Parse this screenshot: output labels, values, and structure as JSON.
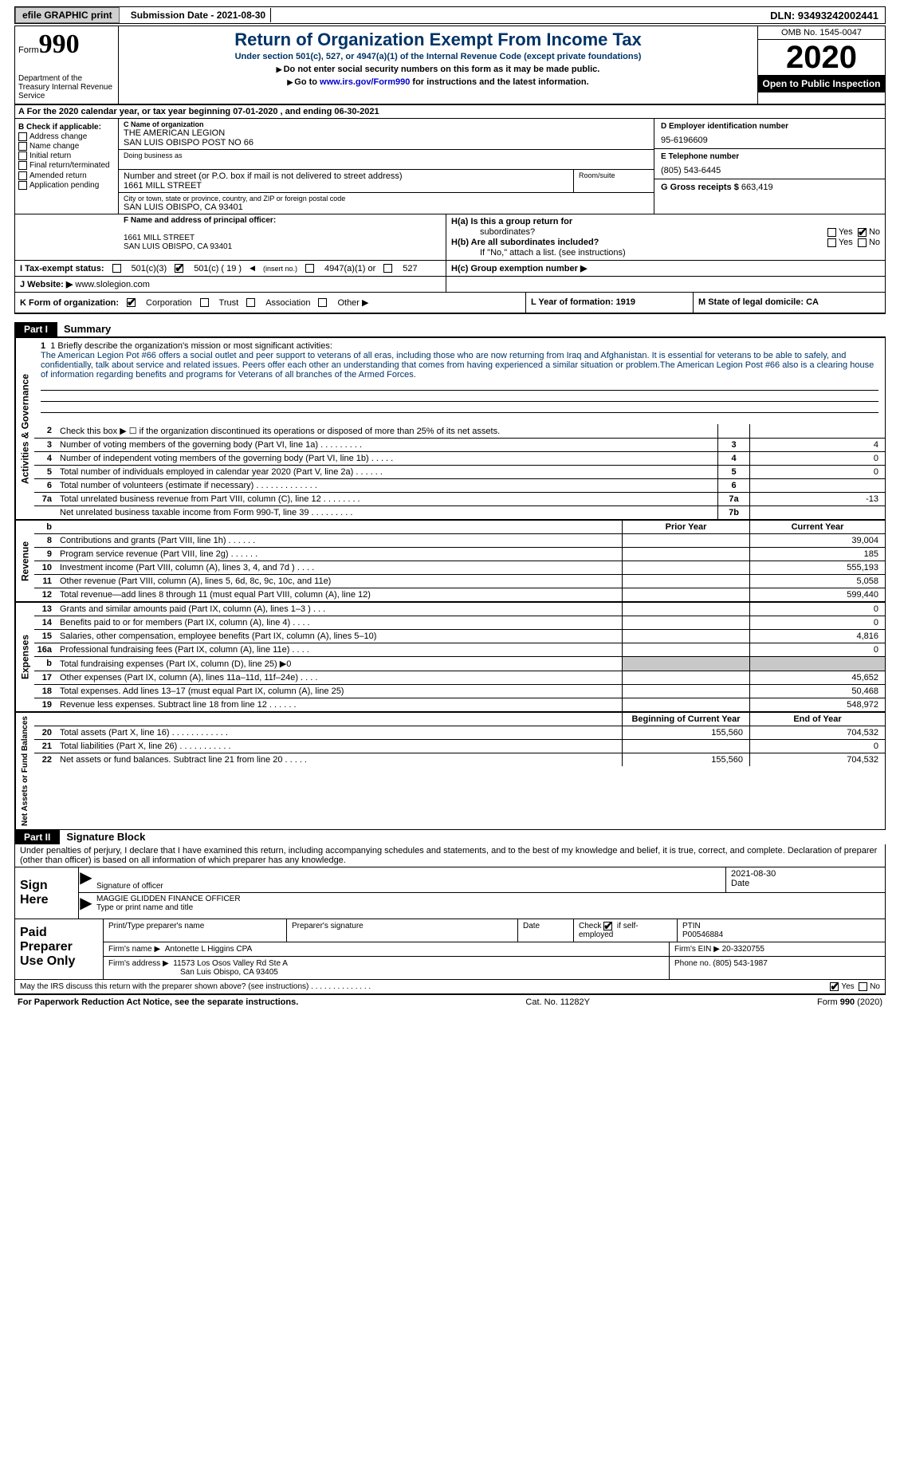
{
  "topbar": {
    "efile": "efile GRAPHIC print",
    "submission": "Submission Date - 2021-08-30",
    "dln": "DLN: 93493242002441"
  },
  "header": {
    "form_label": "Form",
    "form_num": "990",
    "dept": "Department of the Treasury Internal Revenue Service",
    "title": "Return of Organization Exempt From Income Tax",
    "sub": "Under section 501(c), 527, or 4947(a)(1) of the Internal Revenue Code (except private foundations)",
    "note1": "Do not enter social security numbers on this form as it may be made public.",
    "note2_pre": "Go to ",
    "note2_link": "www.irs.gov/Form990",
    "note2_post": " for instructions and the latest information.",
    "omb": "OMB No. 1545-0047",
    "year": "2020",
    "openpub": "Open to Public Inspection"
  },
  "rowA": "A For the 2020 calendar year, or tax year beginning 07-01-2020   , and ending 06-30-2021",
  "colB": {
    "title": "B Check if applicable:",
    "items": [
      "Address change",
      "Name change",
      "Initial return",
      "Final return/terminated",
      "Amended return",
      "Application pending"
    ]
  },
  "colC": {
    "name_label": "C Name of organization",
    "name1": "THE AMERICAN LEGION",
    "name2": "SAN LUIS OBISPO POST NO 66",
    "dba_label": "Doing business as",
    "street_label": "Number and street (or P.O. box if mail is not delivered to street address)",
    "street": "1661 MILL STREET",
    "room_label": "Room/suite",
    "city_label": "City or town, state or province, country, and ZIP or foreign postal code",
    "city": "SAN LUIS OBISPO, CA  93401"
  },
  "colD": {
    "ein_label": "D Employer identification number",
    "ein": "95-6196609",
    "phone_label": "E Telephone number",
    "phone": "(805) 543-6445",
    "gross_label": "G Gross receipts $",
    "gross": "663,419"
  },
  "rowF": {
    "label": "F  Name and address of principal officer:",
    "addr1": "1661 MILL STREET",
    "addr2": "SAN LUIS OBISPO, CA  93401",
    "Ha": "H(a)  Is this a group return for",
    "Ha2": "subordinates?",
    "Hb": "H(b)  Are all subordinates included?",
    "Hb2": "If \"No,\" attach a list. (see instructions)",
    "yes": "Yes",
    "no": "No"
  },
  "rowI": {
    "label": "I   Tax-exempt status:",
    "o1": "501(c)(3)",
    "o2": "501(c) ( 19 )",
    "o2b": "(insert no.)",
    "o3": "4947(a)(1) or",
    "o4": "527",
    "Hc": "H(c)  Group exemption number ▶"
  },
  "rowJ": {
    "label": "J  Website: ▶",
    "val": "www.slolegion.com"
  },
  "rowK": {
    "label": "K Form of organization:",
    "o1": "Corporation",
    "o2": "Trust",
    "o3": "Association",
    "o4": "Other ▶",
    "L": "L Year of formation: 1919",
    "M": "M State of legal domicile: CA"
  },
  "part1": {
    "hdr": "Part I",
    "title": "Summary"
  },
  "side": {
    "ag": "Activities & Governance",
    "rev": "Revenue",
    "exp": "Expenses",
    "na": "Net Assets or Fund Balances"
  },
  "mission": {
    "label": "1   Briefly describe the organization's mission or most significant activities:",
    "text": "The American Legion Pot #66 offers a social outlet and peer support to veterans of all eras, including those who are now returning from Iraq and Afghanistan. It is essential for veterans to be able to safely, and confidentially, talk about service and related issues. Peers offer each other an understanding that comes from having experienced a similar situation or problem.The American Legion Post #66 also is a clearing house of information regarding benefits and programs for Veterans of all branches of the Armed Forces."
  },
  "lines_ag": [
    {
      "n": "2",
      "d": "Check this box ▶ ☐  if the organization discontinued its operations or disposed of more than 25% of its net assets.",
      "box": "",
      "v": ""
    },
    {
      "n": "3",
      "d": "Number of voting members of the governing body (Part VI, line 1a)   .    .    .    .    .    .    .    .    .",
      "box": "3",
      "v": "4"
    },
    {
      "n": "4",
      "d": "Number of independent voting members of the governing body (Part VI, line 1b)    .    .    .    .    .",
      "box": "4",
      "v": "0"
    },
    {
      "n": "5",
      "d": "Total number of individuals employed in calendar year 2020 (Part V, line 2a)   .    .    .    .    .    .",
      "box": "5",
      "v": "0"
    },
    {
      "n": "6",
      "d": "Total number of volunteers (estimate if necessary)    .    .    .    .    .    .    .    .    .    .    .    .    .",
      "box": "6",
      "v": ""
    },
    {
      "n": "7a",
      "d": "Total unrelated business revenue from Part VIII, column (C), line 12    .    .    .    .    .    .    .    .",
      "box": "7a",
      "v": "-13"
    },
    {
      "n": "",
      "d": "Net unrelated business taxable income from Form 990-T, line 39    .    .    .    .    .    .    .    .    .",
      "box": "7b",
      "v": ""
    }
  ],
  "col_hdr": {
    "b": "b",
    "prior": "Prior Year",
    "current": "Current Year"
  },
  "lines_rev": [
    {
      "n": "8",
      "d": "Contributions and grants (Part VIII, line 1h)    .    .    .    .    .    .",
      "p": "",
      "c": "39,004"
    },
    {
      "n": "9",
      "d": "Program service revenue (Part VIII, line 2g)    .    .    .    .    .    .",
      "p": "",
      "c": "185"
    },
    {
      "n": "10",
      "d": "Investment income (Part VIII, column (A), lines 3, 4, and 7d )    .    .    .    .",
      "p": "",
      "c": "555,193"
    },
    {
      "n": "11",
      "d": "Other revenue (Part VIII, column (A), lines 5, 6d, 8c, 9c, 10c, and 11e)",
      "p": "",
      "c": "5,058"
    },
    {
      "n": "12",
      "d": "Total revenue—add lines 8 through 11 (must equal Part VIII, column (A), line 12)",
      "p": "",
      "c": "599,440"
    }
  ],
  "lines_exp": [
    {
      "n": "13",
      "d": "Grants and similar amounts paid (Part IX, column (A), lines 1–3 )    .    .    .",
      "p": "",
      "c": "0"
    },
    {
      "n": "14",
      "d": "Benefits paid to or for members (Part IX, column (A), line 4)    .    .    .    .",
      "p": "",
      "c": "0"
    },
    {
      "n": "15",
      "d": "Salaries, other compensation, employee benefits (Part IX, column (A), lines 5–10)",
      "p": "",
      "c": "4,816"
    },
    {
      "n": "16a",
      "d": "Professional fundraising fees (Part IX, column (A), line 11e)    .    .    .    .",
      "p": "",
      "c": "0"
    },
    {
      "n": "b",
      "d": "Total fundraising expenses (Part IX, column (D), line 25) ▶0",
      "p": "grey",
      "c": "grey"
    },
    {
      "n": "17",
      "d": "Other expenses (Part IX, column (A), lines 11a–11d, 11f–24e)    .    .    .    .",
      "p": "",
      "c": "45,652"
    },
    {
      "n": "18",
      "d": "Total expenses. Add lines 13–17 (must equal Part IX, column (A), line 25)",
      "p": "",
      "c": "50,468"
    },
    {
      "n": "19",
      "d": "Revenue less expenses. Subtract line 18 from line 12    .    .    .    .    .    .",
      "p": "",
      "c": "548,972"
    }
  ],
  "col_hdr2": {
    "prior": "Beginning of Current Year",
    "current": "End of Year"
  },
  "lines_na": [
    {
      "n": "20",
      "d": "Total assets (Part X, line 16)    .    .    .    .    .    .    .    .    .    .    .    .",
      "p": "155,560",
      "c": "704,532"
    },
    {
      "n": "21",
      "d": "Total liabilities (Part X, line 26)    .    .    .    .    .    .    .    .    .    .    .",
      "p": "",
      "c": "0"
    },
    {
      "n": "22",
      "d": "Net assets or fund balances. Subtract line 21 from line 20    .    .    .    .    .",
      "p": "155,560",
      "c": "704,532"
    }
  ],
  "part2": {
    "hdr": "Part II",
    "title": "Signature Block"
  },
  "sig": {
    "perjury": "Under penalties of perjury, I declare that I have examined this return, including accompanying schedules and statements, and to the best of my knowledge and belief, it is true, correct, and complete. Declaration of preparer (other than officer) is based on all information of which preparer has any knowledge.",
    "sign_here": "Sign Here",
    "sig_officer": "Signature of officer",
    "date": "2021-08-30",
    "date_label": "Date",
    "name": "MAGGIE GLIDDEN  FINANCE OFFICER",
    "name_label": "Type or print name and title"
  },
  "prep": {
    "title": "Paid Preparer Use Only",
    "h1": "Print/Type preparer's name",
    "h2": "Preparer's signature",
    "h3": "Date",
    "h4_pre": "Check",
    "h4_post": "if self-employed",
    "h5": "PTIN",
    "ptin": "P00546884",
    "firm_label": "Firm's name    ▶",
    "firm": "Antonette L Higgins CPA",
    "ein_label": "Firm's EIN ▶",
    "ein": "20-3320755",
    "addr_label": "Firm's address ▶",
    "addr1": "11573 Los Osos Valley Rd Ste A",
    "addr2": "San Luis Obispo, CA  93405",
    "phone_label": "Phone no.",
    "phone": "(805) 543-1987"
  },
  "discuss": "May the IRS discuss this return with the preparer shown above? (see instructions)    .    .    .    .    .    .    .    .    .    .    .    .    .    .",
  "footer": {
    "pra": "For Paperwork Reduction Act Notice, see the separate instructions.",
    "cat": "Cat. No. 11282Y",
    "form": "Form 990 (2020)"
  }
}
